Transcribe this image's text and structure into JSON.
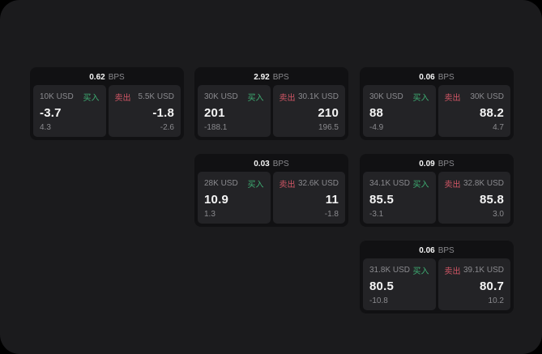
{
  "labels": {
    "bps_suffix": "BPS",
    "buy": "买入",
    "sell": "卖出"
  },
  "colors": {
    "panel_bg": "#1b1b1d",
    "card_bg": "#111113",
    "subcard_bg": "#232326",
    "value_white": "#f5f5f5",
    "muted_gray": "#8a8a8e",
    "buy_green": "#3eae73",
    "sell_red": "#d15665"
  },
  "cards": [
    {
      "bps": "0.62",
      "buy": {
        "amount": "10K USD",
        "value": "-3.7",
        "delta": "4.3"
      },
      "sell": {
        "amount": "5.5K USD",
        "value": "-1.8",
        "delta": "-2.6"
      }
    },
    {
      "bps": "2.92",
      "buy": {
        "amount": "30K USD",
        "value": "201",
        "delta": "-188.1"
      },
      "sell": {
        "amount": "30.1K USD",
        "value": "210",
        "delta": "196.5"
      }
    },
    {
      "bps": "0.06",
      "buy": {
        "amount": "30K USD",
        "value": "88",
        "delta": "-4.9"
      },
      "sell": {
        "amount": "30K USD",
        "value": "88.2",
        "delta": "4.7"
      }
    },
    {
      "bps": "0.03",
      "buy": {
        "amount": "28K USD",
        "value": "10.9",
        "delta": "1.3"
      },
      "sell": {
        "amount": "32.6K USD",
        "value": "11",
        "delta": "-1.8"
      }
    },
    {
      "bps": "0.09",
      "buy": {
        "amount": "34.1K USD",
        "value": "85.5",
        "delta": "-3.1"
      },
      "sell": {
        "amount": "32.8K USD",
        "value": "85.8",
        "delta": "3.0"
      }
    },
    {
      "bps": "0.06",
      "buy": {
        "amount": "31.8K USD",
        "value": "80.5",
        "delta": "-10.8"
      },
      "sell": {
        "amount": "39.1K USD",
        "value": "80.7",
        "delta": "10.2"
      }
    }
  ]
}
